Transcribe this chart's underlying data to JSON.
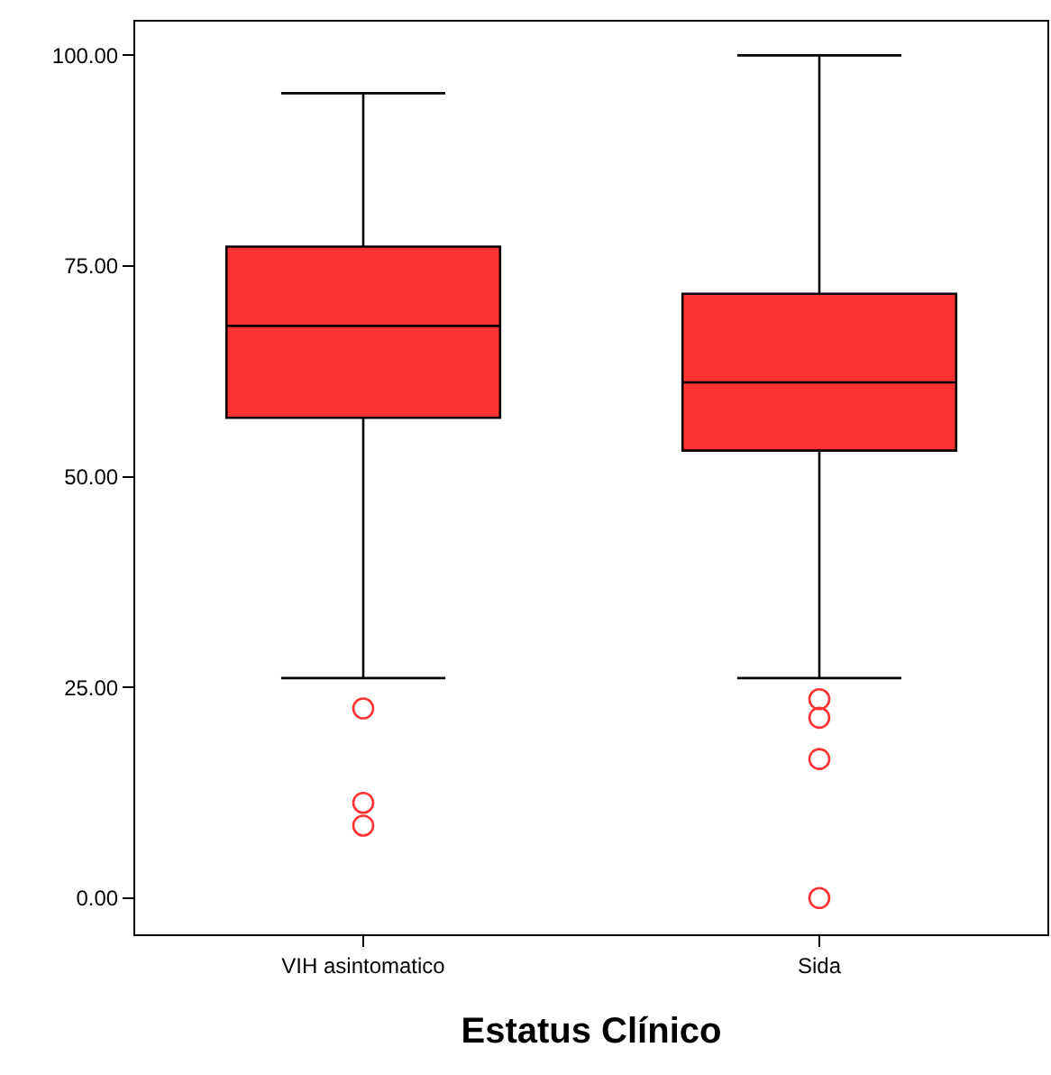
{
  "chart_data": {
    "type": "box",
    "xlabel": "Estatus Clínico",
    "categories": [
      "VIH asintomatico",
      "Sida"
    ],
    "boxes": [
      {
        "low": 26.1,
        "q1": 57.0,
        "median": 67.9,
        "q3": 77.3,
        "high": 95.5,
        "outliers": [
          22.5,
          11.3,
          8.6
        ]
      },
      {
        "low": 26.1,
        "q1": 53.1,
        "median": 61.2,
        "q3": 71.7,
        "high": 100.0,
        "outliers": [
          23.6,
          21.4,
          16.5,
          0.0
        ]
      }
    ],
    "color": "#ff3333",
    "ylim": [
      -4.3,
      104.0
    ],
    "yticks": [
      {
        "value": 0,
        "label": "0.00"
      },
      {
        "value": 25,
        "label": "25.00"
      },
      {
        "value": 50,
        "label": "50.00"
      },
      {
        "value": 75,
        "label": "75.00"
      },
      {
        "value": 100,
        "label": "100.00"
      }
    ],
    "marker": "circle"
  }
}
